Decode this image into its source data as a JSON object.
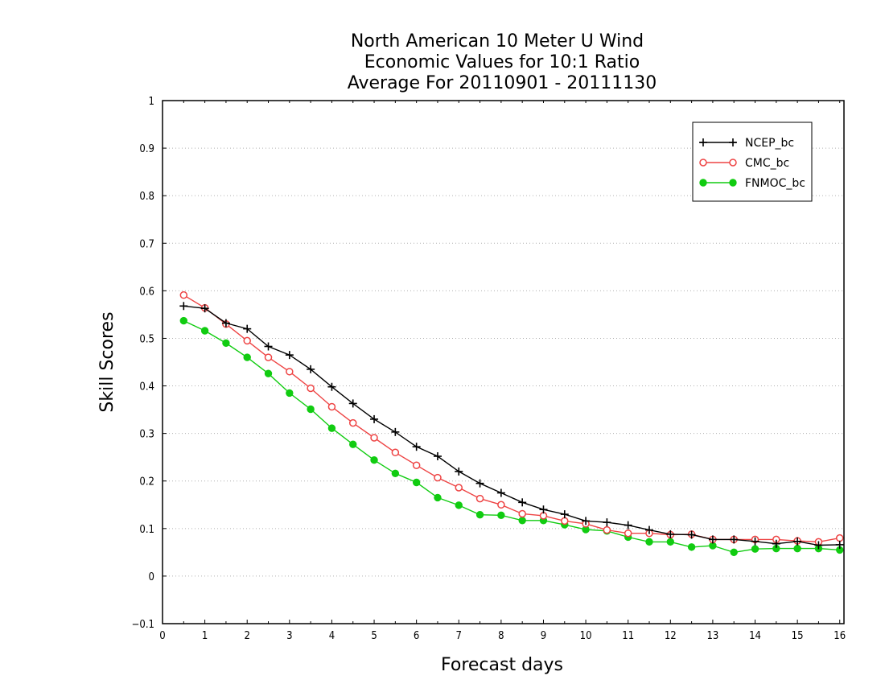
{
  "chart_data": {
    "type": "line",
    "title_lines": [
      "North American 10 Meter U Wind",
      "Economic Values for 10:1 Ratio",
      "Average For 20110901 - 20111130"
    ],
    "xlabel": "Forecast days",
    "ylabel": "Skill Scores",
    "xlim": [
      0,
      16.1
    ],
    "ylim": [
      -0.1,
      1
    ],
    "xticks": [
      "0",
      "1",
      "2",
      "3",
      "4",
      "5",
      "6",
      "7",
      "8",
      "9",
      "10",
      "11",
      "12",
      "13",
      "14",
      "15",
      "16"
    ],
    "yticks": [
      "−0.1",
      "0",
      "0.1",
      "0.2",
      "0.3",
      "0.4",
      "0.5",
      "0.6",
      "0.7",
      "0.8",
      "0.9",
      "1"
    ],
    "grid": "horizontal dotted",
    "legend_position": "top-right",
    "x": [
      0.5,
      1,
      1.5,
      2,
      2.5,
      3,
      3.5,
      4,
      4.5,
      5,
      5.5,
      6,
      6.5,
      7,
      7.5,
      8,
      8.5,
      9,
      9.5,
      10,
      10.5,
      11,
      11.5,
      12,
      12.5,
      13,
      13.5,
      14,
      14.5,
      15,
      15.5,
      16
    ],
    "series": [
      {
        "name": "NCEP_bc",
        "color": "#000000",
        "marker": "plus",
        "values": [
          0.568,
          0.563,
          0.532,
          0.52,
          0.483,
          0.465,
          0.435,
          0.398,
          0.363,
          0.33,
          0.303,
          0.272,
          0.252,
          0.22,
          0.195,
          0.175,
          0.155,
          0.14,
          0.13,
          0.116,
          0.113,
          0.107,
          0.097,
          0.088,
          0.087,
          0.077,
          0.077,
          0.073,
          0.068,
          0.073,
          0.065,
          0.066
        ]
      },
      {
        "name": "CMC_bc",
        "color": "#ee4444",
        "marker": "open-circle",
        "values": [
          0.591,
          0.564,
          0.53,
          0.495,
          0.46,
          0.43,
          0.395,
          0.356,
          0.322,
          0.291,
          0.26,
          0.233,
          0.207,
          0.186,
          0.163,
          0.15,
          0.131,
          0.127,
          0.116,
          0.11,
          0.097,
          0.09,
          0.09,
          0.087,
          0.088,
          0.077,
          0.077,
          0.077,
          0.077,
          0.074,
          0.072,
          0.08
        ]
      },
      {
        "name": "FNMOC_bc",
        "color": "#11cc11",
        "marker": "filled-circle",
        "values": [
          0.537,
          0.516,
          0.49,
          0.46,
          0.426,
          0.385,
          0.351,
          0.311,
          0.277,
          0.244,
          0.216,
          0.197,
          0.165,
          0.149,
          0.129,
          0.128,
          0.117,
          0.117,
          0.108,
          0.098,
          0.095,
          0.082,
          0.072,
          0.072,
          0.061,
          0.064,
          0.05,
          0.057,
          0.058,
          0.058,
          0.058,
          0.055
        ]
      }
    ]
  }
}
